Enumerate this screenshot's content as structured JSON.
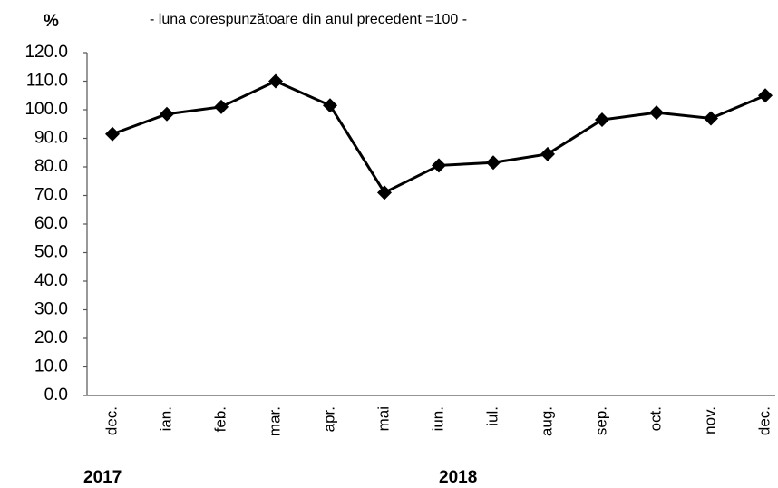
{
  "chart_data": {
    "type": "line",
    "y_label": "%",
    "subtitle": "- luna corespunzătoare din anul precedent =100 -",
    "categories": [
      "dec.",
      "ian.",
      "feb.",
      "mar.",
      "apr.",
      "mai",
      "iun.",
      "iul.",
      "aug.",
      "sep.",
      "oct.",
      "nov.",
      "dec."
    ],
    "category_groups": [
      "2017",
      "2018"
    ],
    "series": [
      {
        "color": "#000000",
        "values": [
          91.5,
          98.5,
          101,
          110,
          101.5,
          71,
          80.5,
          81.5,
          84.5,
          96.5,
          99,
          97,
          105
        ]
      }
    ],
    "ylim": [
      0,
      120
    ],
    "yticks": [
      {
        "value": 0,
        "label": "0.0"
      },
      {
        "value": 10,
        "label": "10.0"
      },
      {
        "value": 20,
        "label": "20.0"
      },
      {
        "value": 30,
        "label": "30.0"
      },
      {
        "value": 40,
        "label": "40.0"
      },
      {
        "value": 50,
        "label": "50.0"
      },
      {
        "value": 60,
        "label": "60.0"
      },
      {
        "value": 70,
        "label": "70.0"
      },
      {
        "value": 80,
        "label": "80.0"
      },
      {
        "value": 90,
        "label": "90.0"
      },
      {
        "value": 100,
        "label": "100.0"
      },
      {
        "value": 110,
        "label": "110.0"
      },
      {
        "value": 120,
        "label": "120.0"
      }
    ],
    "grid": false,
    "marker": "diamond"
  }
}
